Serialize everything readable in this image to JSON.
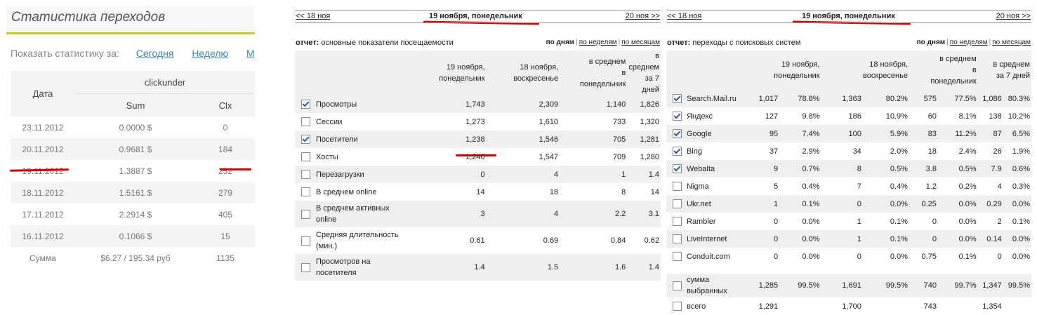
{
  "traffic": {
    "title": "Статистика переходов",
    "period_label": "Показать статистику за:",
    "period_links": [
      "Сегодня",
      "Неделю",
      "М"
    ],
    "col_date": "Дата",
    "col_group": "clickunder",
    "col_sum": "Sum",
    "col_clx": "Clx",
    "rows": [
      {
        "date": "23.11.2012",
        "sum": "0.0000 $",
        "clx": "0"
      },
      {
        "date": "20.11.2012",
        "sum": "0.9681 $",
        "clx": "184"
      },
      {
        "date": "19.11.2012",
        "sum": "1.3887 $",
        "clx": "252"
      },
      {
        "date": "18.11.2012",
        "sum": "1.5161 $",
        "clx": "279"
      },
      {
        "date": "17.11.2012",
        "sum": "2.2914 $",
        "clx": "405"
      },
      {
        "date": "16.11.2012",
        "sum": "0.1066 $",
        "clx": "15"
      }
    ],
    "total": {
      "label": "Сумма",
      "sum": "$6.27 / 195.34 руб",
      "clx": "1135"
    }
  },
  "nav": {
    "prev": "<< 18 ноя",
    "current": "19 ноября, понедельник",
    "next": "20 ноя >>"
  },
  "modes": {
    "days": "по дням",
    "weeks": "по неделям",
    "months": "по месяцам"
  },
  "main_stats": {
    "report_prefix": "отчет:",
    "report_name": "основные показатели посещаемости",
    "headers": [
      "19 ноября,\nпонедельник",
      "18 ноября,\nвоскресенье",
      "в среднем\nв\nпонедельник",
      "в\nсреднем\nза 7 дней"
    ],
    "rows": [
      {
        "label": "Просмотры",
        "checked": true,
        "v": [
          "1,743",
          "2,309",
          "1,140",
          "1,826"
        ]
      },
      {
        "label": "Сессии",
        "checked": false,
        "v": [
          "1,273",
          "1,610",
          "733",
          "1,320"
        ]
      },
      {
        "label": "Посетители",
        "checked": true,
        "v": [
          "1,238",
          "1,546",
          "705",
          "1,281"
        ]
      },
      {
        "label": "Хосты",
        "checked": false,
        "v": [
          "1,240",
          "1,547",
          "709",
          "1,280"
        ]
      },
      {
        "label": "Перезагрузки",
        "checked": false,
        "v": [
          "0",
          "4",
          "1",
          "1.4"
        ]
      },
      {
        "label": "В среднем online",
        "checked": false,
        "v": [
          "14",
          "18",
          "8",
          "14"
        ]
      },
      {
        "label": "В среднем активных online",
        "checked": false,
        "v": [
          "3",
          "4",
          "2.2",
          "3.1"
        ]
      },
      {
        "label": "Средняя длительность (мин.)",
        "checked": false,
        "v": [
          "0.61",
          "0.69",
          "0.84",
          "0.62"
        ]
      },
      {
        "label": "Просмотров на посетителя",
        "checked": false,
        "v": [
          "1.4",
          "1.5",
          "1.6",
          "1.4"
        ]
      }
    ]
  },
  "search_stats": {
    "report_prefix": "отчет:",
    "report_name": "переходы с поисковых систем",
    "headers": [
      "19 ноября,\nпонедельник",
      "18 ноября,\nвоскресенье",
      "в среднем\nв\nпонедельник",
      "в среднем\nза 7 дней"
    ],
    "rows": [
      {
        "label": "Search.Mail.ru",
        "checked": true,
        "v": [
          "1,017",
          "78.8%",
          "1,363",
          "80.2%",
          "575",
          "77.5%",
          "1,086",
          "80.3%"
        ]
      },
      {
        "label": "Яндекс",
        "checked": true,
        "v": [
          "127",
          "9.8%",
          "186",
          "10.9%",
          "60",
          "8.1%",
          "138",
          "10.2%"
        ]
      },
      {
        "label": "Google",
        "checked": true,
        "v": [
          "95",
          "7.4%",
          "100",
          "5.9%",
          "83",
          "11.2%",
          "87",
          "6.5%"
        ]
      },
      {
        "label": "Bing",
        "checked": true,
        "v": [
          "37",
          "2.9%",
          "34",
          "2.0%",
          "18",
          "2.4%",
          "26",
          "1.9%"
        ]
      },
      {
        "label": "Webalta",
        "checked": true,
        "v": [
          "9",
          "0.7%",
          "8",
          "0.5%",
          "3.8",
          "0.5%",
          "7.9",
          "0.6%"
        ]
      },
      {
        "label": "Nigma",
        "checked": false,
        "v": [
          "5",
          "0.4%",
          "7",
          "0.4%",
          "1.2",
          "0.2%",
          "4",
          "0.3%"
        ]
      },
      {
        "label": "Ukr.net",
        "checked": false,
        "v": [
          "1",
          "0.1%",
          "0",
          "0.0%",
          "0.25",
          "0.0%",
          "0.29",
          "0.0%"
        ]
      },
      {
        "label": "Rambler",
        "checked": false,
        "v": [
          "0",
          "0.0%",
          "1",
          "0.1%",
          "0",
          "0.0%",
          "2",
          "0.1%"
        ]
      },
      {
        "label": "LiveInternet",
        "checked": false,
        "v": [
          "0",
          "0.0%",
          "1",
          "0.1%",
          "0",
          "0.0%",
          "0.14",
          "0.0%"
        ]
      },
      {
        "label": "Conduit.com",
        "checked": false,
        "v": [
          "0",
          "0.0%",
          "0",
          "0.0%",
          "0.75",
          "0.1%",
          "0",
          "0.0%"
        ]
      },
      {
        "label": "сумма выбранных",
        "checked": false,
        "v": [
          "1,285",
          "99.5%",
          "1,691",
          "99.5%",
          "740",
          "99.7%",
          "1,347",
          "99.5%"
        ]
      },
      {
        "label": "всего",
        "checked": false,
        "v": [
          "1,291",
          "",
          "1,700",
          "",
          "743",
          "",
          "1,354",
          ""
        ]
      }
    ]
  },
  "colors": {
    "accent": "#c3c92e",
    "highlight": "#d90000",
    "link": "#3a88b0"
  }
}
